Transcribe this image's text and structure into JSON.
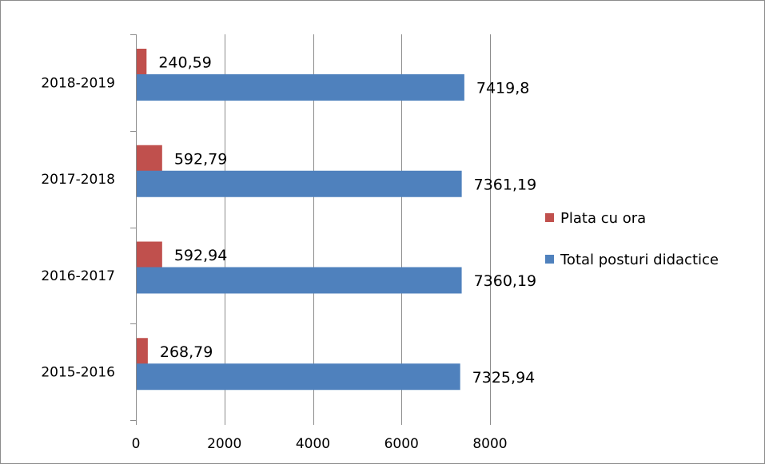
{
  "chart_data": {
    "type": "bar",
    "orientation": "horizontal",
    "categories": [
      "2015-2016",
      "2016-2017",
      "2017-2018",
      "2018-2019"
    ],
    "series": [
      {
        "name": "Plata cu ora",
        "color": "#c0504d",
        "values": [
          268.79,
          592.94,
          592.79,
          240.59
        ],
        "labels": [
          "268,79",
          "592,94",
          "592,79",
          "240,59"
        ]
      },
      {
        "name": "Total posturi didactice",
        "color": "#4f81bd",
        "values": [
          7325.94,
          7360.19,
          7361.19,
          7419.8
        ],
        "labels": [
          "7325,94",
          "7360,19",
          "7361,19",
          "7419,8"
        ]
      }
    ],
    "xlim": [
      0,
      8000
    ],
    "xticks": [
      0,
      2000,
      4000,
      6000,
      8000
    ],
    "xtick_labels": [
      "0",
      "2000",
      "4000",
      "6000",
      "8000"
    ],
    "grid": "vertical",
    "legend_position": "right",
    "title": "",
    "xlabel": "",
    "ylabel": ""
  }
}
